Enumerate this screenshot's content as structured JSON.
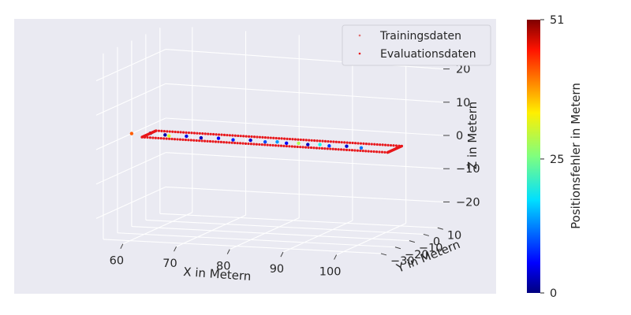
{
  "chart_data": {
    "type": "scatter",
    "projection": "3d",
    "xlabel": "X in Metern",
    "ylabel": "Y in Metern",
    "zlabel": "Z in Metern",
    "x_ticks": [
      60,
      70,
      80,
      90,
      100
    ],
    "y_ticks": [
      -30,
      -20,
      -10,
      0,
      10
    ],
    "z_ticks": [
      20,
      10,
      0,
      -10,
      -20
    ],
    "xlim": [
      55,
      107
    ],
    "ylim": [
      -35,
      14
    ],
    "zlim": [
      -27,
      27
    ],
    "grid": true,
    "legend": {
      "placement": "top-right",
      "entries": [
        {
          "label": "Trainingsdaten",
          "color": "#e07070"
        },
        {
          "label": "Evaluationsdaten",
          "color": "#e8181c"
        }
      ]
    },
    "colorbar": {
      "label": "Positionsfehler in Metern",
      "ticks": [
        0,
        25,
        51
      ],
      "range": [
        0,
        51
      ],
      "colormap": "jet"
    },
    "series": [
      {
        "name": "Evaluationsdaten",
        "color": "#e8181c",
        "loop": {
          "x_range": [
            58,
            104
          ],
          "y_range": [
            -14,
            -4
          ],
          "z": 0
        }
      },
      {
        "name": "Trainingsdaten",
        "color": "#e07070",
        "points": [
          {
            "x": 55,
            "y": -10,
            "z": 0,
            "error": 40
          },
          {
            "x": 58,
            "y": -8,
            "z": 0,
            "error": 0
          },
          {
            "x": 61,
            "y": -9,
            "z": 0,
            "error": 2
          },
          {
            "x": 62,
            "y": -10,
            "z": 0,
            "error": 30
          },
          {
            "x": 65,
            "y": -9,
            "z": 0,
            "error": 5
          },
          {
            "x": 68,
            "y": -10,
            "z": 0,
            "error": 3
          },
          {
            "x": 71,
            "y": -9,
            "z": 0,
            "error": 6
          },
          {
            "x": 74,
            "y": -10,
            "z": 0,
            "error": 8
          },
          {
            "x": 77,
            "y": -9,
            "z": 0,
            "error": 4
          },
          {
            "x": 80,
            "y": -10,
            "z": 0,
            "error": 10
          },
          {
            "x": 82,
            "y": -9,
            "z": 0,
            "error": 14
          },
          {
            "x": 84,
            "y": -10,
            "z": 0,
            "error": 6
          },
          {
            "x": 86,
            "y": -9,
            "z": 0,
            "error": 28
          },
          {
            "x": 88,
            "y": -10,
            "z": 0,
            "error": 3
          },
          {
            "x": 90,
            "y": -9,
            "z": 0,
            "error": 20
          },
          {
            "x": 92,
            "y": -10,
            "z": 0,
            "error": 9
          },
          {
            "x": 95,
            "y": -9,
            "z": 0,
            "error": 4
          },
          {
            "x": 98,
            "y": -10,
            "z": 0,
            "error": 12
          }
        ]
      }
    ]
  }
}
